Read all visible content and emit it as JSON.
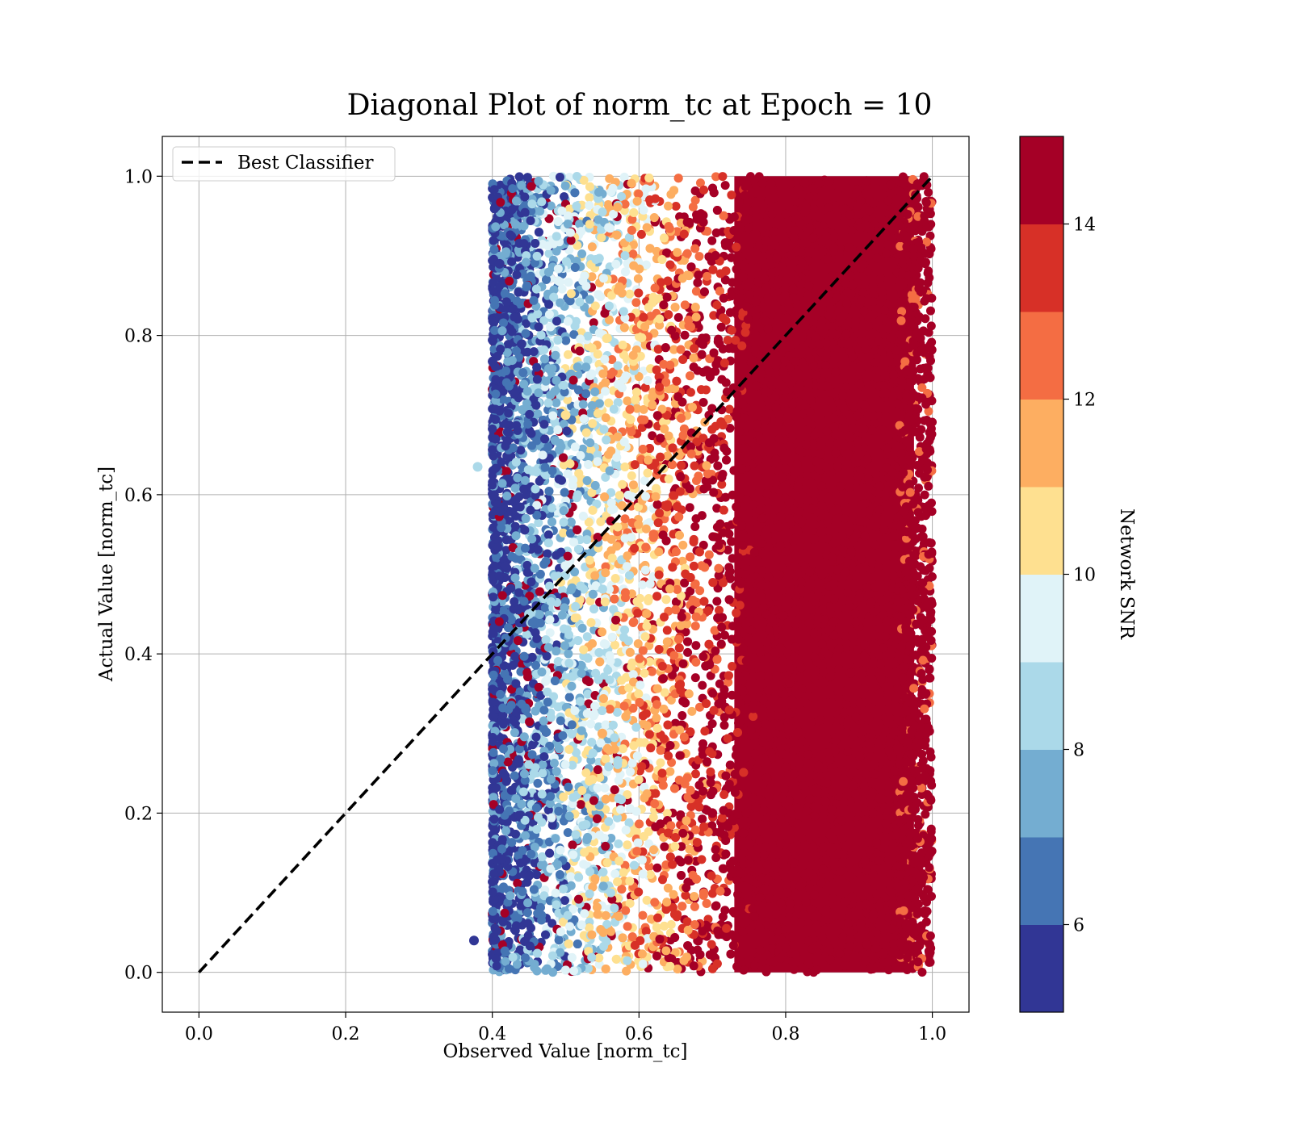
{
  "chart_data": {
    "type": "scatter",
    "title": "Diagonal Plot of norm_tc at Epoch = 10",
    "xlabel": "Observed Value [norm_tc]",
    "ylabel": "Actual Value [norm_tc]",
    "xlim": [
      -0.05,
      1.05
    ],
    "ylim": [
      -0.05,
      1.05
    ],
    "xticks": [
      "0.0",
      "0.2",
      "0.4",
      "0.6",
      "0.8",
      "1.0"
    ],
    "yticks": [
      "0.0",
      "0.2",
      "0.4",
      "0.6",
      "0.8",
      "1.0"
    ],
    "grid": true,
    "legend": {
      "placement": "upper-left",
      "entries": [
        {
          "label": "Best Classifier",
          "style": "dashed",
          "color": "#000000"
        }
      ]
    },
    "lines": [
      {
        "label": "Best Classifier",
        "x": [
          0.0,
          1.0
        ],
        "y": [
          0.0,
          1.0
        ],
        "style": "dashed",
        "color": "#000000"
      }
    ],
    "scatter": {
      "x_range": [
        0.38,
        1.0
      ],
      "y_range": [
        0.0,
        1.0
      ],
      "color_by": "Network SNR",
      "description": "Dense cloud; points with observed value near 0.4 have low SNR (blue), colours shift through pale yellow and orange to dark red (SNR >= 14) for observed values above about 0.7.",
      "sample_points": [
        {
          "x": 0.375,
          "y": 0.04,
          "snr": 5.5
        },
        {
          "x": 0.38,
          "y": 0.635,
          "snr": 8.5
        },
        {
          "x": 0.41,
          "y": 0.89,
          "snr": 5.8
        },
        {
          "x": 0.45,
          "y": 0.45,
          "snr": 8.2
        },
        {
          "x": 0.5,
          "y": 0.7,
          "snr": 10.5
        },
        {
          "x": 0.55,
          "y": 0.3,
          "snr": 11.5
        },
        {
          "x": 0.62,
          "y": 0.55,
          "snr": 12.8
        },
        {
          "x": 0.7,
          "y": 0.2,
          "snr": 14.5
        },
        {
          "x": 0.85,
          "y": 0.5,
          "snr": 15.0
        },
        {
          "x": 0.98,
          "y": 0.99,
          "snr": 14.8
        }
      ]
    },
    "colorbar": {
      "label": "Network SNR",
      "range": [
        5,
        15
      ],
      "ticks": [
        "6",
        "8",
        "10",
        "12",
        "14"
      ],
      "colors": [
        "#313695",
        "#4575b4",
        "#74add1",
        "#abd9e9",
        "#e0f3f8",
        "#fee090",
        "#fdae61",
        "#f46d43",
        "#d73027",
        "#a50026"
      ]
    }
  }
}
